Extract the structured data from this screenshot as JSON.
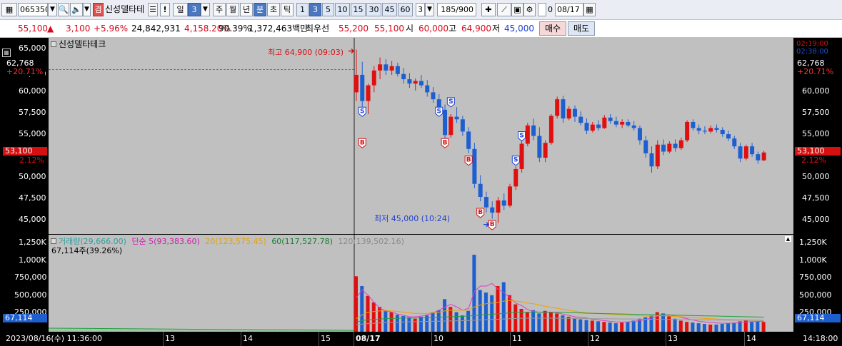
{
  "toolbar": {
    "code": "065350",
    "stock_name_tag": "겸",
    "stock_name": "신성델타테",
    "warning_btn": "!",
    "period_day": "일",
    "period_day_num": "3",
    "period_week": "주",
    "period_month": "월",
    "period_year": "년",
    "period_minute": "분",
    "period_second": "초",
    "period_tick": "틱",
    "intervals": [
      "1",
      "3",
      "5",
      "10",
      "15",
      "30",
      "45",
      "60"
    ],
    "interval_select": "3",
    "count": "185/900",
    "checkbox_label": "0",
    "date_value": "08/17"
  },
  "quote": {
    "price": "55,100",
    "change": "3,100",
    "change_pct": "+5.96%",
    "volume": "24,842,931",
    "vol_ratio": "4,158.20%",
    "turnover": "90.39%",
    "amount": "1,372,463백만",
    "best_ask_label": "최우선",
    "best_ask": "55,200",
    "best_bid": "55,100",
    "open_label": "시",
    "open": "60,000",
    "high_label": "고",
    "high": "64,900",
    "low_label": "저",
    "low": "45,000",
    "buy_btn": "매수",
    "sell_btn": "매도"
  },
  "price_panel": {
    "title": "신성델타테크",
    "y_ticks": [
      "65,000",
      "62,500",
      "60,000",
      "57,500",
      "55,000",
      "52,500",
      "50,000",
      "47,500",
      "45,000"
    ],
    "left_tag_value": "62,768",
    "left_tag_pct": "+20.71%",
    "right_tag_value": "62,768",
    "right_tag_pct": "+20.71%",
    "right_top_1": "02:19:00",
    "right_top_2": "02:38:00",
    "current_price_tag": "53,100",
    "current_pct_tag": "2.12%",
    "high_annotation": "최고 64,900 (09:03)",
    "low_annotation": "최저 45,000 (10:24)"
  },
  "volume_panel": {
    "legend_volume": "거래량(29,666.00)",
    "legend_ma5": "단순 5(93,383.60)",
    "legend_ma20": "20(123,575.45)",
    "legend_ma60": "60(117,527.78)",
    "legend_ma120": "120(139,502.16)",
    "sub_label": "67,114주(39.26%)",
    "y_ticks": [
      "1,250K",
      "1,000K",
      "750,000",
      "500,000",
      "250,000"
    ],
    "current_tag": "67,114"
  },
  "x_axis": {
    "left_datetime": "2023/08/16(수) 11:36:00",
    "labels": [
      "13",
      "14",
      "15",
      "08/17",
      "10",
      "11",
      "12",
      "13",
      "14"
    ],
    "right_time": "14:18:00"
  },
  "colors": {
    "up": "#e01010",
    "down": "#1e5fd0",
    "plot_bg": "#c0c0c0",
    "ma5": "#e040c0",
    "ma20": "#f0a000",
    "ma60": "#20a040",
    "ma120": "#9a9a9a"
  },
  "chart_data": {
    "type": "candlestick",
    "title": "신성델타테크",
    "ylim": [
      43750,
      66250
    ],
    "candles_0817": [
      [
        60000,
        64900,
        59000,
        62000
      ],
      [
        62000,
        63500,
        58000,
        59000
      ],
      [
        59000,
        61000,
        57500,
        60800
      ],
      [
        60800,
        63000,
        60000,
        62500
      ],
      [
        62500,
        64000,
        61500,
        63200
      ],
      [
        63200,
        63800,
        62000,
        62500
      ],
      [
        62500,
        63600,
        62000,
        63000
      ],
      [
        63000,
        63400,
        61800,
        62100
      ],
      [
        62100,
        62800,
        61000,
        61500
      ],
      [
        61500,
        62200,
        60500,
        61000
      ],
      [
        61000,
        61600,
        60200,
        61300
      ],
      [
        61300,
        62000,
        60500,
        60800
      ],
      [
        60800,
        61400,
        59500,
        60000
      ],
      [
        60000,
        60600,
        58800,
        59200
      ],
      [
        59200,
        59800,
        57500,
        58000
      ],
      [
        58000,
        58600,
        54500,
        55100
      ],
      [
        55100,
        57500,
        54800,
        57200
      ],
      [
        57200,
        58300,
        56500,
        56900
      ],
      [
        56900,
        57300,
        55000,
        55500
      ],
      [
        55500,
        56000,
        53000,
        53500
      ],
      [
        53500,
        54200,
        49000,
        49500
      ],
      [
        49500,
        50500,
        47500,
        48000
      ],
      [
        48000,
        48600,
        46200,
        46800
      ],
      [
        46800,
        47500,
        45500,
        46200
      ],
      [
        46200,
        48000,
        45000,
        47600
      ],
      [
        47600,
        48400,
        46500,
        47000
      ],
      [
        47000,
        49500,
        46800,
        49200
      ],
      [
        49200,
        51500,
        48800,
        51200
      ],
      [
        51200,
        54500,
        50800,
        54100
      ],
      [
        54100,
        56500,
        53800,
        56200
      ],
      [
        56200,
        57000,
        54500,
        55000
      ],
      [
        55000,
        56000,
        52000,
        52500
      ],
      [
        52500,
        54500,
        52000,
        54200
      ],
      [
        54200,
        57500,
        54000,
        57300
      ],
      [
        57300,
        59500,
        57000,
        59200
      ],
      [
        59200,
        59600,
        56500,
        57000
      ],
      [
        57000,
        58400,
        56800,
        58100
      ],
      [
        58100,
        58500,
        56600,
        57200
      ],
      [
        57200,
        57800,
        56200,
        56500
      ],
      [
        56500,
        57000,
        55200,
        55600
      ],
      [
        55600,
        56600,
        55400,
        56300
      ],
      [
        56300,
        56800,
        55600,
        55900
      ],
      [
        55900,
        57400,
        55800,
        57100
      ],
      [
        57100,
        57500,
        56400,
        56700
      ],
      [
        56700,
        57200,
        56000,
        56300
      ],
      [
        56300,
        56900,
        55900,
        56600
      ],
      [
        56600,
        56900,
        56000,
        56200
      ],
      [
        56200,
        56700,
        55600,
        55900
      ],
      [
        55900,
        56200,
        54000,
        54500
      ],
      [
        54500,
        55000,
        52500,
        53000
      ],
      [
        53000,
        53800,
        50800,
        51500
      ],
      [
        51500,
        54500,
        51200,
        54000
      ],
      [
        54000,
        54600,
        52800,
        53200
      ],
      [
        53200,
        54400,
        53000,
        54100
      ],
      [
        54100,
        54600,
        53200,
        53600
      ],
      [
        53600,
        54800,
        53400,
        54500
      ],
      [
        54500,
        56800,
        54300,
        56600
      ],
      [
        56600,
        56900,
        55600,
        55900
      ],
      [
        55900,
        56300,
        55200,
        55600
      ],
      [
        55600,
        56100,
        55200,
        55500
      ],
      [
        55500,
        56200,
        55300,
        55900
      ],
      [
        55900,
        56300,
        55400,
        55700
      ],
      [
        55700,
        56000,
        54900,
        55200
      ],
      [
        55200,
        55600,
        54400,
        54700
      ],
      [
        54700,
        55000,
        53500,
        53800
      ],
      [
        53800,
        54200,
        52000,
        52400
      ],
      [
        52400,
        54000,
        52200,
        53800
      ],
      [
        53800,
        54200,
        52600,
        52900
      ],
      [
        52900,
        53200,
        51800,
        52200
      ],
      [
        52200,
        53300,
        52100,
        53100
      ]
    ],
    "buy_markers": [
      {
        "candle": 1,
        "price": 54200
      },
      {
        "candle": 15,
        "price": 54200
      },
      {
        "candle": 19,
        "price": 52200
      },
      {
        "candle": 21,
        "price": 46200
      },
      {
        "candle": 23,
        "price": 44800
      }
    ],
    "sell_markers": [
      {
        "candle": 1,
        "price": 57800
      },
      {
        "candle": 16,
        "price": 58900
      },
      {
        "candle": 14,
        "price": 57800
      },
      {
        "candle": 27,
        "price": 52200
      },
      {
        "candle": 28,
        "price": 55000
      }
    ],
    "volume_0817": [
      850,
      700,
      550,
      450,
      380,
      330,
      300,
      260,
      240,
      220,
      200,
      230,
      250,
      300,
      330,
      500,
      380,
      300,
      250,
      320,
      1180,
      640,
      600,
      560,
      700,
      760,
      560,
      420,
      350,
      300,
      330,
      280,
      320,
      300,
      280,
      250,
      230,
      210,
      190,
      180,
      170,
      160,
      150,
      140,
      130,
      140,
      150,
      170,
      200,
      220,
      250,
      300,
      280,
      240,
      200,
      170,
      150,
      140,
      130,
      120,
      110,
      110,
      120,
      130,
      140,
      160,
      170,
      150,
      160,
      150
    ],
    "volume_0816": [
      60,
      55,
      50,
      48,
      45,
      42,
      40,
      38,
      35,
      33,
      30,
      28,
      26,
      25,
      24,
      22,
      20,
      20,
      18,
      16
    ],
    "series": [
      {
        "name": "단순 5",
        "values": [
          520,
          640,
          560,
          450,
          360,
          320,
          300,
          270,
          250,
          230,
          230,
          240,
          260,
          290,
          330,
          380,
          420,
          380,
          330,
          360,
          620,
          700,
          700,
          740,
          650,
          600,
          520,
          440,
          400,
          340,
          310,
          300,
          300,
          300,
          290,
          270,
          250,
          230,
          220,
          210,
          190,
          180,
          170,
          160,
          150,
          148,
          150,
          160,
          170,
          190,
          210,
          240,
          260,
          260,
          240,
          220,
          200,
          180,
          160,
          150,
          140,
          135,
          130,
          130,
          132,
          140,
          150,
          155,
          158,
          160
        ]
      },
      {
        "name": "20",
        "values": [
          200,
          260,
          300,
          310,
          320,
          320,
          320,
          310,
          300,
          290,
          280,
          280,
          280,
          290,
          300,
          320,
          330,
          330,
          330,
          335,
          380,
          410,
          430,
          440,
          450,
          470,
          480,
          470,
          460,
          440,
          430,
          410,
          390,
          375,
          360,
          345,
          330,
          315,
          300,
          290,
          285,
          280,
          275,
          270,
          265,
          260,
          255,
          250,
          245,
          240,
          240,
          245,
          245,
          240,
          235,
          230,
          222,
          215,
          210,
          205,
          200,
          195,
          190,
          188,
          185,
          182,
          180,
          180,
          178,
          175
        ]
      },
      {
        "name": "60",
        "values": [
          150,
          170,
          185,
          190,
          195,
          200,
          205,
          205,
          210,
          210,
          210,
          212,
          214,
          216,
          220,
          225,
          230,
          234,
          238,
          240,
          248,
          255,
          262,
          268,
          275,
          282,
          290,
          296,
          300,
          300,
          300,
          300,
          300,
          300,
          298,
          296,
          294,
          290,
          288,
          285,
          282,
          280,
          278,
          276,
          274,
          272,
          270,
          268,
          266,
          264,
          262,
          260,
          258,
          256,
          254,
          252,
          250,
          248,
          246,
          244,
          242,
          240,
          238,
          236,
          234,
          232,
          230,
          228,
          226,
          224
        ]
      },
      {
        "name": "120",
        "values": [
          110,
          118,
          125,
          130,
          135,
          140,
          145,
          148,
          150,
          152,
          154,
          156,
          158,
          160,
          162,
          164,
          166,
          168,
          170,
          172,
          176,
          180,
          184,
          188,
          192,
          196,
          200,
          204,
          206,
          208,
          208,
          208,
          208,
          208,
          207,
          206,
          205,
          204,
          203,
          202,
          201,
          200,
          199,
          198,
          197,
          196,
          195,
          194,
          193,
          192,
          191,
          190,
          189,
          188,
          187,
          186,
          185,
          184,
          183,
          182,
          181,
          180,
          179,
          178,
          177,
          176,
          175,
          174,
          173,
          172
        ]
      }
    ],
    "previous_day_line": 62768
  }
}
